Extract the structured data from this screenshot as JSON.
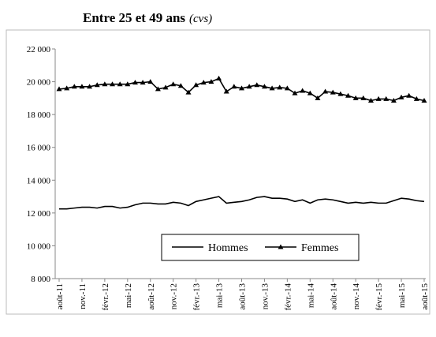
{
  "chart_data": {
    "type": "line",
    "title": "Entre 25 et 49 ans",
    "subtitle": "(cvs)",
    "categories": [
      "août-11",
      null,
      null,
      "nov.-11",
      null,
      null,
      "févr.-12",
      null,
      null,
      "mai-12",
      null,
      null,
      "août-12",
      null,
      null,
      "nov.-12",
      null,
      null,
      "févr.-13",
      null,
      null,
      "mai-13",
      null,
      null,
      "août-13",
      null,
      null,
      "nov.-13",
      null,
      null,
      "févr.-14",
      null,
      null,
      "mai-14",
      null,
      null,
      "août-14",
      null,
      null,
      "nov.-14",
      null,
      null,
      "févr.-15",
      null,
      null,
      "mai-15",
      null,
      null,
      "août-15"
    ],
    "series": [
      {
        "name": "Hommes",
        "color": "#000000",
        "marker": "none",
        "values": [
          12250,
          12250,
          12300,
          12350,
          12350,
          12300,
          12400,
          12400,
          12300,
          12350,
          12500,
          12600,
          12600,
          12550,
          12550,
          12650,
          12600,
          12450,
          12700,
          12800,
          12900,
          13000,
          12600,
          12650,
          12700,
          12800,
          12950,
          13000,
          12900,
          12900,
          12850,
          12700,
          12800,
          12600,
          12800,
          12850,
          12800,
          12700,
          12600,
          12650,
          12600,
          12650,
          12600,
          12600,
          12750,
          12900,
          12850,
          12750,
          12700
        ]
      },
      {
        "name": "Femmes",
        "color": "#000000",
        "marker": "triangle",
        "values": [
          19550,
          19600,
          19700,
          19700,
          19700,
          19800,
          19850,
          19850,
          19850,
          19850,
          19950,
          19950,
          20000,
          19550,
          19650,
          19850,
          19750,
          19350,
          19800,
          19950,
          20000,
          20200,
          19400,
          19700,
          19600,
          19700,
          19800,
          19700,
          19600,
          19650,
          19600,
          19300,
          19450,
          19300,
          19000,
          19400,
          19350,
          19250,
          19150,
          19000,
          19000,
          18850,
          18950,
          18950,
          18850,
          19050,
          19150,
          18950,
          18850
        ]
      }
    ],
    "ylim": [
      8000,
      22000
    ],
    "yticks": [
      {
        "value": 8000,
        "label": "8 000"
      },
      {
        "value": 10000,
        "label": "10 000"
      },
      {
        "value": 12000,
        "label": "12 000"
      },
      {
        "value": 14000,
        "label": "14 000"
      },
      {
        "value": 16000,
        "label": "16 000"
      },
      {
        "value": 18000,
        "label": "18 000"
      },
      {
        "value": 20000,
        "label": "20 000"
      },
      {
        "value": 22000,
        "label": "22 000"
      }
    ],
    "grid": false
  }
}
